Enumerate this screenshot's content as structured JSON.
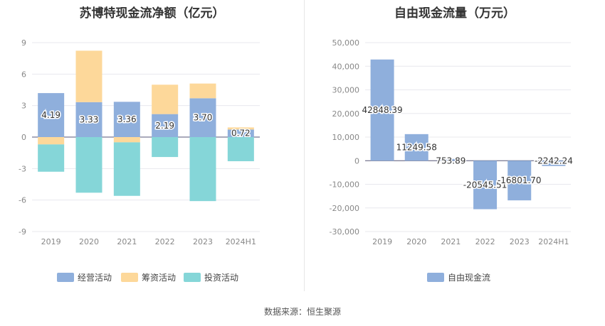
{
  "source_text": "数据来源：恒生聚源",
  "chart_data": [
    {
      "type": "bar",
      "stacked": true,
      "title": "苏博特现金流净额（亿元）",
      "categories": [
        "2019",
        "2020",
        "2021",
        "2022",
        "2023",
        "2024H1"
      ],
      "yticks": [
        9,
        6,
        3,
        0,
        -3,
        -6,
        -9
      ],
      "ylim": [
        -9,
        9
      ],
      "series": [
        {
          "name": "经营活动",
          "color": "#8fafdc",
          "values": [
            4.19,
            3.33,
            3.36,
            2.19,
            3.7,
            0.72
          ],
          "labels": [
            "4.19",
            "3.33",
            "3.36",
            "2.19",
            "3.70",
            "0.72"
          ]
        },
        {
          "name": "筹资活动",
          "color": "#fdd89a",
          "values": [
            -0.7,
            4.9,
            -0.5,
            2.8,
            1.4,
            0.2
          ]
        },
        {
          "name": "投资活动",
          "color": "#85d6d8",
          "values": [
            -2.6,
            -5.3,
            -5.1,
            -1.9,
            -6.1,
            -2.3
          ]
        }
      ],
      "legend_position": "bottom"
    },
    {
      "type": "bar",
      "title": "自由现金流量（万元）",
      "categories": [
        "2019",
        "2020",
        "2021",
        "2022",
        "2023",
        "2024H1"
      ],
      "yticks": [
        50000,
        40000,
        30000,
        20000,
        10000,
        0,
        -10000,
        -20000,
        -30000
      ],
      "ytick_labels": [
        "50,000",
        "40,000",
        "30,000",
        "20,000",
        "10,000",
        "0",
        "-10,000",
        "-20,000",
        "-30,000"
      ],
      "ylim": [
        -30000,
        50000
      ],
      "series": [
        {
          "name": "自由现金流",
          "color": "#8fafdc",
          "values": [
            42848.39,
            11249.58,
            753.89,
            -20545.51,
            -16801.7,
            -2242.24
          ],
          "labels": [
            "42848.39",
            "11249.58",
            "753.89",
            "-20545.51",
            "-16801.70",
            "-2242.24"
          ]
        }
      ],
      "legend_position": "bottom"
    }
  ]
}
